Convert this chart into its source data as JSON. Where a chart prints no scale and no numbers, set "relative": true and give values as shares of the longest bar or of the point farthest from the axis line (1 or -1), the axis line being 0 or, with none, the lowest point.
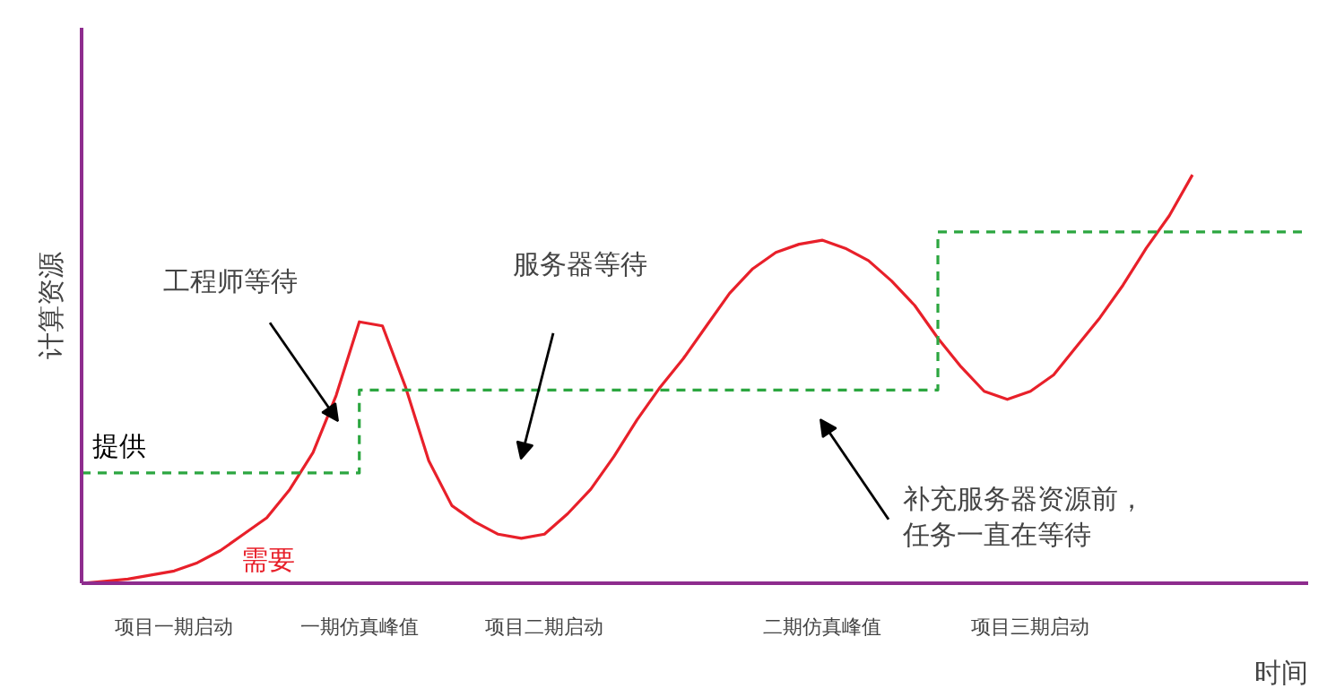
{
  "chart_data": {
    "type": "line",
    "relative": true,
    "ylabel": "计算资源",
    "xlabel": "时间",
    "categories": [
      null,
      null,
      null,
      null,
      "项目一期启动",
      null,
      null,
      null,
      null,
      null,
      null,
      null,
      "一期仿真峰值",
      null,
      null,
      null,
      null,
      null,
      null,
      null,
      "项目二期启动",
      null,
      null,
      null,
      null,
      null,
      null,
      null,
      null,
      null,
      null,
      null,
      "二期仿真峰值",
      null,
      null,
      null,
      null,
      null,
      null,
      null,
      null,
      "项目三期启动",
      null,
      null,
      null,
      null,
      null,
      null,
      null,
      null,
      null,
      null,
      null,
      null
    ],
    "grid": false,
    "legend": false,
    "marker": "none",
    "series": [
      {
        "name": "需要",
        "color": "#e8202a",
        "line_style": "solid",
        "values": [
          0,
          0.005,
          0.01,
          0.02,
          0.03,
          0.05,
          0.08,
          0.12,
          0.16,
          0.23,
          0.32,
          0.46,
          0.64,
          0.63,
          0.48,
          0.3,
          0.19,
          0.15,
          0.12,
          0.11,
          0.12,
          0.17,
          0.23,
          0.31,
          0.4,
          0.48,
          0.55,
          0.63,
          0.71,
          0.77,
          0.81,
          0.83,
          0.84,
          0.82,
          0.79,
          0.74,
          0.68,
          0.6,
          0.53,
          0.47,
          0.45,
          0.47,
          0.51,
          0.58,
          0.65,
          0.73,
          0.82,
          0.9,
          1,
          null,
          null,
          null,
          null,
          null
        ]
      },
      {
        "name": "提供",
        "type": "step",
        "color": "#2ca640",
        "line_style": "dashed",
        "values": [
          0.27,
          0.27,
          0.27,
          0.27,
          0.27,
          0.27,
          0.27,
          0.27,
          0.27,
          0.27,
          0.27,
          0.27,
          0.473,
          0.473,
          0.473,
          0.473,
          0.473,
          0.473,
          0.473,
          0.473,
          0.473,
          0.473,
          0.473,
          0.473,
          0.473,
          0.473,
          0.473,
          0.473,
          0.473,
          0.473,
          0.473,
          0.473,
          0.473,
          0.473,
          0.473,
          0.473,
          0.473,
          0.86,
          0.86,
          0.86,
          0.86,
          0.86,
          0.86,
          0.86,
          0.86,
          0.86,
          0.86,
          0.86,
          0.86,
          0.86,
          0.86,
          0.86,
          0.86,
          0.86
        ]
      }
    ],
    "annotations": [
      "工程师等待",
      "服务器等待",
      "补充服务器资源前，任务一直在等待"
    ]
  }
}
